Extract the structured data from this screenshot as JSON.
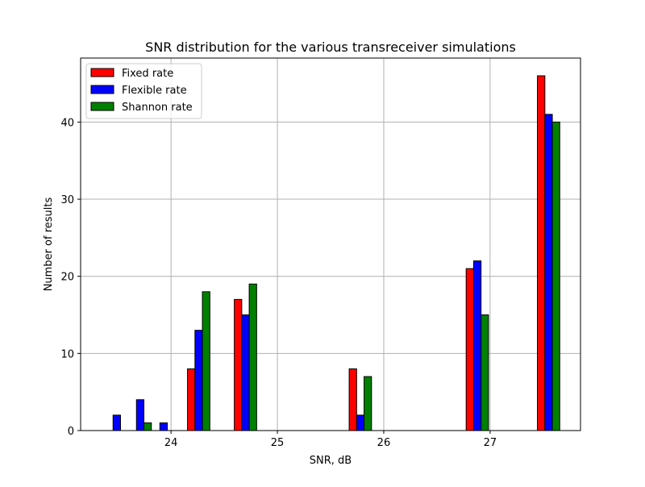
{
  "chart_data": {
    "type": "bar",
    "title": "SNR distribution for the various transreceiver simulations",
    "xlabel": "SNR, dB",
    "ylabel": "Number of results",
    "xlim": [
      23.15,
      27.85
    ],
    "ylim": [
      0,
      48.3
    ],
    "xticks": [
      "24",
      "25",
      "26",
      "27"
    ],
    "yticks": [
      "0",
      "10",
      "20",
      "30",
      "40"
    ],
    "grid": true,
    "legend_position": "upper-left",
    "bin_centers": [
      23.49,
      23.71,
      23.93,
      24.26,
      24.7,
      25.0,
      25.3,
      25.6,
      25.78,
      26.2,
      26.5,
      26.88,
      27.2,
      27.55
    ],
    "series": [
      {
        "name": "Fixed rate",
        "color": "#ff0000",
        "values": [
          0,
          0,
          0,
          8,
          17,
          0,
          0,
          0,
          8,
          0,
          0,
          21,
          0,
          46
        ]
      },
      {
        "name": "Flexible rate",
        "color": "#0000ff",
        "values": [
          2,
          4,
          1,
          13,
          15,
          0,
          0,
          0,
          2,
          0,
          0,
          22,
          0,
          41
        ]
      },
      {
        "name": "Shannon rate",
        "color": "#008000",
        "values": [
          0,
          1,
          0,
          18,
          19,
          0,
          0,
          0,
          7,
          0,
          0,
          15,
          0,
          40
        ]
      }
    ]
  }
}
